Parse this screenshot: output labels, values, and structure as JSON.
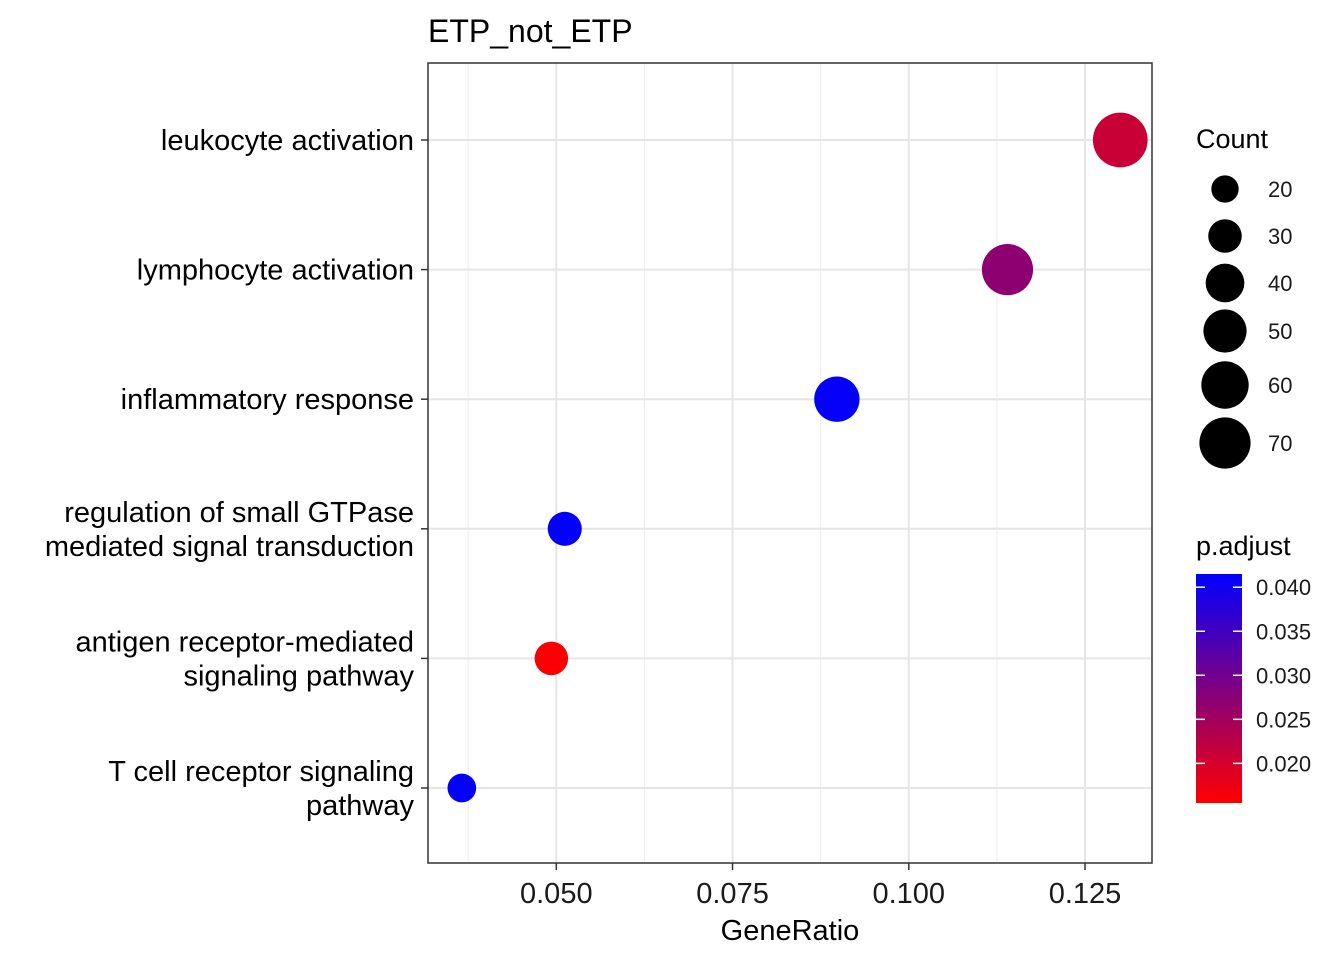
{
  "chart_data": {
    "type": "scatter",
    "title": "ETP_not_ETP",
    "xlabel": "GeneRatio",
    "ylabel": "",
    "xlim": [
      0.0318,
      0.1345
    ],
    "x_ticks": [
      "0.050",
      "0.075",
      "0.100",
      "0.125"
    ],
    "x_tick_values": [
      0.05,
      0.075,
      0.1,
      0.125
    ],
    "grid": true,
    "categories": [
      "leukocyte activation",
      "lymphocyte activation",
      "inflammatory response",
      "regulation of small GTPase mediated signal transduction",
      "antigen receptor-mediated signaling pathway",
      "T cell receptor signaling pathway"
    ],
    "category_lines": [
      [
        "leukocyte activation"
      ],
      [
        "lymphocyte activation"
      ],
      [
        "inflammatory response"
      ],
      [
        "regulation of small GTPase",
        "mediated signal transduction"
      ],
      [
        "antigen receptor-mediated",
        "signaling pathway"
      ],
      [
        "T cell receptor signaling",
        "pathway"
      ]
    ],
    "points": [
      {
        "category": "leukocyte activation",
        "x": 0.13,
        "count": 80,
        "p_adjust": 0.021
      },
      {
        "category": "lymphocyte activation",
        "x": 0.114,
        "count": 70,
        "p_adjust": 0.027
      },
      {
        "category": "inflammatory response",
        "x": 0.0898,
        "count": 55,
        "p_adjust": 0.041
      },
      {
        "category": "regulation of small GTPase mediated signal transduction",
        "x": 0.0512,
        "count": 31,
        "p_adjust": 0.041
      },
      {
        "category": "antigen receptor-mediated signaling pathway",
        "x": 0.0493,
        "count": 30,
        "p_adjust": 0.016
      },
      {
        "category": "T cell receptor signaling pathway",
        "x": 0.0366,
        "count": 22,
        "p_adjust": 0.041
      }
    ],
    "size_legend": {
      "title": "Count",
      "values": [
        20,
        30,
        40,
        50,
        60,
        70
      ],
      "labels": [
        "20",
        "30",
        "40",
        "50",
        "60",
        "70"
      ]
    },
    "color_legend": {
      "title": "p.adjust",
      "range": [
        0.0155,
        0.0415
      ],
      "ticks": [
        0.04,
        0.035,
        0.03,
        0.025,
        0.02
      ],
      "labels": [
        "0.040",
        "0.035",
        "0.030",
        "0.025",
        "0.020"
      ],
      "low_color": "#ff0000",
      "high_color": "#0000ff"
    },
    "legend_placement": "right"
  }
}
